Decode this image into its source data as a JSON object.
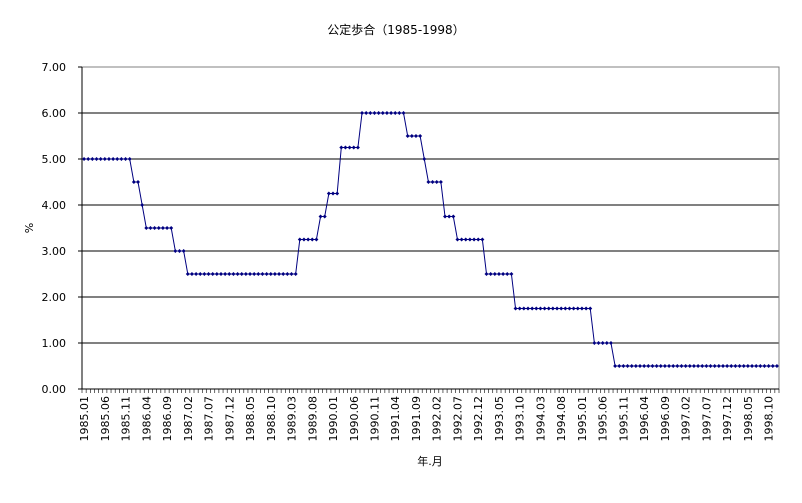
{
  "chart_data": {
    "type": "line",
    "title": "公定歩合（1985-1998）",
    "xlabel": "年.月",
    "ylabel": "%",
    "ylim": [
      0,
      7
    ],
    "yticks": [
      "0.00",
      "1.00",
      "2.00",
      "3.00",
      "4.00",
      "5.00",
      "6.00",
      "7.00"
    ],
    "grid": true,
    "legend": "none",
    "marker": "diamond",
    "color": "#000080",
    "x_start": "1985.01",
    "x_end": "1998.12",
    "xtick_labels": [
      "1985.01",
      "1985.06",
      "1985.11",
      "1986.04",
      "1986.09",
      "1987.02",
      "1987.07",
      "1987.12",
      "1988.05",
      "1988.10",
      "1989.03",
      "1989.08",
      "1990.01",
      "1990.06",
      "1990.11",
      "1991.04",
      "1991.09",
      "1992.02",
      "1992.07",
      "1992.12",
      "1993.05",
      "1993.10",
      "1994.03",
      "1994.08",
      "1995.01",
      "1995.06",
      "1995.11",
      "1996.04",
      "1996.09",
      "1997.02",
      "1997.07",
      "1997.12",
      "1998.05",
      "1998.10"
    ],
    "steps": [
      {
        "from": "1985.01",
        "value": 5.0
      },
      {
        "from": "1986.01",
        "value": 4.5
      },
      {
        "from": "1986.03",
        "value": 4.0
      },
      {
        "from": "1986.04",
        "value": 3.5
      },
      {
        "from": "1986.11",
        "value": 3.0
      },
      {
        "from": "1987.02",
        "value": 2.5
      },
      {
        "from": "1989.05",
        "value": 3.25
      },
      {
        "from": "1989.10",
        "value": 3.75
      },
      {
        "from": "1989.12",
        "value": 4.25
      },
      {
        "from": "1990.03",
        "value": 5.25
      },
      {
        "from": "1990.08",
        "value": 6.0
      },
      {
        "from": "1991.07",
        "value": 5.5
      },
      {
        "from": "1991.11",
        "value": 5.0
      },
      {
        "from": "1991.12",
        "value": 4.5
      },
      {
        "from": "1992.04",
        "value": 3.75
      },
      {
        "from": "1992.07",
        "value": 3.25
      },
      {
        "from": "1993.02",
        "value": 2.5
      },
      {
        "from": "1993.09",
        "value": 1.75
      },
      {
        "from": "1995.04",
        "value": 1.0
      },
      {
        "from": "1995.09",
        "value": 0.5
      }
    ]
  }
}
